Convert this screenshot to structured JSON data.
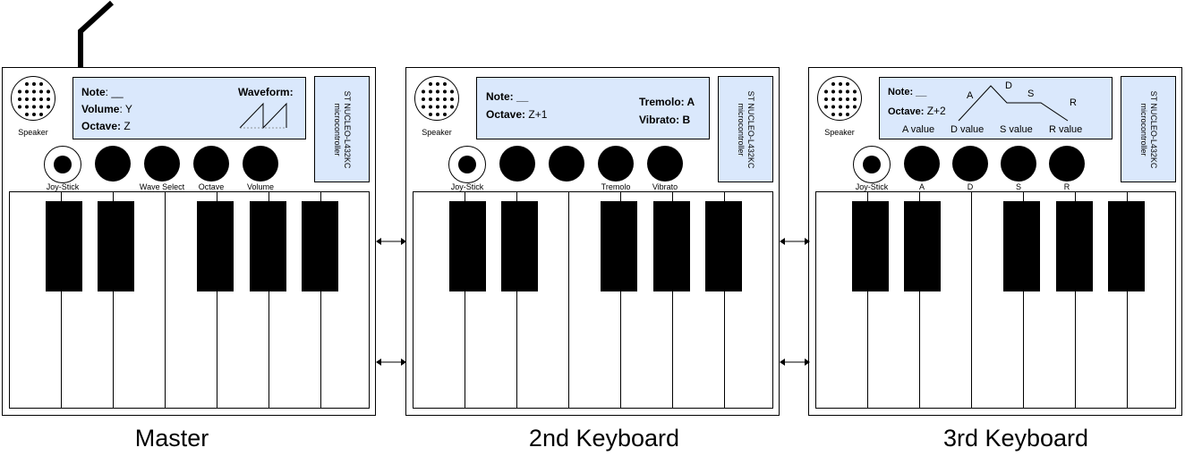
{
  "keyboards": [
    {
      "id": "master",
      "caption": "Master",
      "speaker_label": "Speaker",
      "lcd": {
        "note_label": "Note",
        "note_value": ": __",
        "volume_label": "Volume",
        "volume_value": ": Y",
        "octave_label": "Octave:",
        "octave_value": " Z",
        "waveform_label": "Waveform:"
      },
      "mcu": "ST NUCLEO-L432KC microcontroller",
      "controls": [
        "Joy-Stick",
        "",
        "Wave Select",
        "Octave",
        "Volume"
      ]
    },
    {
      "id": "second",
      "caption": "2nd Keyboard",
      "speaker_label": "Speaker",
      "lcd": {
        "note_label": "Note: __",
        "octave_label": "Octave:",
        "octave_value": " Z+1",
        "tremolo_label": "Tremolo: A",
        "vibrato_label": "Vibrato: B"
      },
      "mcu": "ST NUCLEO-L432KC microcontroller",
      "controls": [
        "Joy-Stick",
        "",
        "",
        "Tremolo",
        "Vibrato"
      ]
    },
    {
      "id": "third",
      "caption": "3rd Keyboard",
      "speaker_label": "Speaker",
      "lcd": {
        "note_label": "Note: __",
        "octave_label": "Octave:",
        "octave_value": " Z+2",
        "adsr": [
          "A",
          "D",
          "S",
          "R"
        ],
        "values": [
          "A value",
          "D value",
          "S value",
          "R value"
        ]
      },
      "mcu": "ST NUCLEO-L432KC microcontroller",
      "controls": [
        "Joy-Stick",
        "A",
        "D",
        "S",
        "R"
      ]
    }
  ],
  "links": [
    {
      "from": "Master",
      "to": "2nd Keyboard",
      "direction": "bidirectional",
      "count": 2
    },
    {
      "from": "2nd Keyboard",
      "to": "3rd Keyboard",
      "direction": "bidirectional",
      "count": 2
    }
  ]
}
